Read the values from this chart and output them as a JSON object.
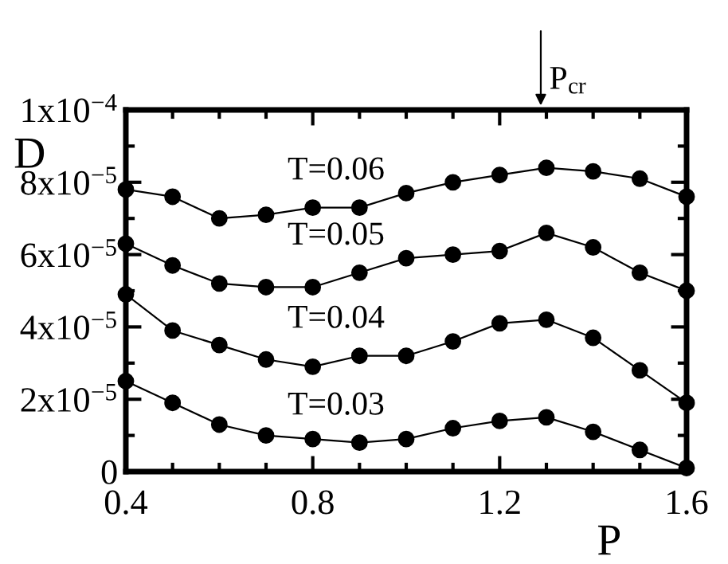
{
  "chart_data": {
    "type": "line",
    "xlabel": "P",
    "ylabel": "D",
    "x": [
      0.4,
      0.5,
      0.6,
      0.7,
      0.8,
      0.9,
      1.0,
      1.1,
      1.2,
      1.3,
      1.4,
      1.5,
      1.6
    ],
    "series": [
      {
        "name": "T=0.06",
        "color": "#000000",
        "values": [
          7.8e-05,
          7.6e-05,
          7e-05,
          7.1e-05,
          7.3e-05,
          7.3e-05,
          7.7e-05,
          8e-05,
          8.2e-05,
          8.4e-05,
          8.3e-05,
          8.1e-05,
          7.6e-05
        ]
      },
      {
        "name": "T=0.05",
        "color": "#000000",
        "values": [
          6.3e-05,
          5.7e-05,
          5.2e-05,
          5.1e-05,
          5.1e-05,
          5.5e-05,
          5.9e-05,
          6e-05,
          6.1e-05,
          6.6e-05,
          6.2e-05,
          5.5e-05,
          5e-05
        ]
      },
      {
        "name": "T=0.04",
        "color": "#000000",
        "values": [
          4.9e-05,
          3.9e-05,
          3.5e-05,
          3.1e-05,
          2.9e-05,
          3.2e-05,
          3.2e-05,
          3.6e-05,
          4.1e-05,
          4.2e-05,
          3.7e-05,
          2.8e-05,
          1.9e-05
        ]
      },
      {
        "name": "T=0.03",
        "color": "#000000",
        "values": [
          2.5e-05,
          1.9e-05,
          1.3e-05,
          1e-05,
          9e-06,
          8e-06,
          9e-06,
          1.2e-05,
          1.4e-05,
          1.5e-05,
          1.1e-05,
          6e-06,
          1e-06
        ]
      }
    ],
    "xlim": [
      0.4,
      1.6
    ],
    "xticks": [
      0.4,
      0.8,
      1.2,
      1.6
    ],
    "ylim": [
      0,
      0.0001
    ],
    "yticks": [
      0,
      {
        "value": 2e-05,
        "label": "2x10$^{−5}$"
      },
      {
        "value": 4e-05,
        "label": "4x10$^{−5}$"
      },
      {
        "value": 6e-05,
        "label": "6x10$^{−5}$"
      },
      {
        "value": 8e-05,
        "label": "8x10$^{−5}$"
      },
      {
        "value": 0.0001,
        "label": "1x10$^{−4}$"
      }
    ],
    "annotations": [
      "P$_{cr}$"
    ],
    "marker": "circle",
    "line_style": "solid",
    "grid": false
  }
}
